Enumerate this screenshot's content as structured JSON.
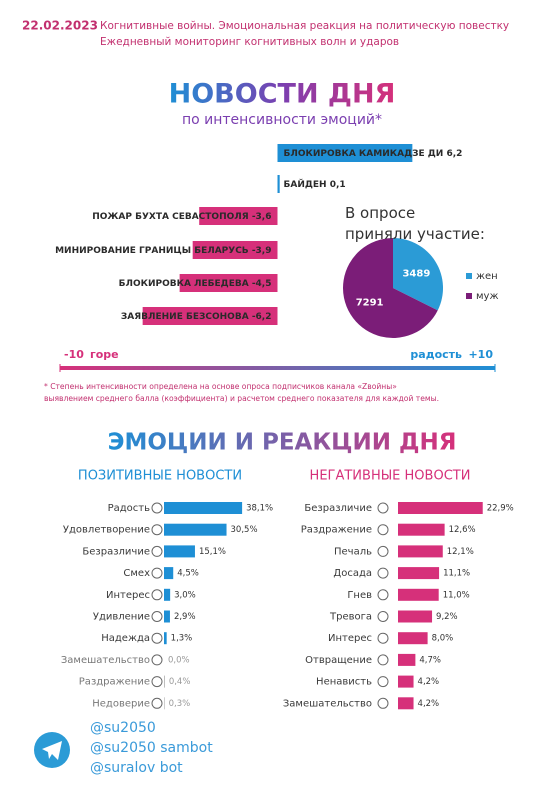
{
  "header": {
    "date": "22.02.2023",
    "lines": [
      "Когнитивные войны. Эмоциональная реакция на политическую повестку",
      "Ежедневный мониторинг когнитивных волн и ударов"
    ]
  },
  "chart_data": [
    {
      "type": "hbar",
      "title": "НОВОСТИ ДНЯ",
      "subtitle": "по интенсивности эмоций*",
      "categories": [
        "БЛОКИРОВКА КАМИКАДЗЕ ДИ",
        "БАЙДЕН",
        "ПОЖАР БУХТА СЕВАСТОПОЛЯ",
        "МИНИРОВАНИЕ ГРАНИЦЫ БЕЛАРУСЬ",
        "БЛОКИРОВКА ЛЕБЕДЕВА",
        "ЗАЯВЛЕНИЕ БЕЗСОНОВА"
      ],
      "values": [
        6.2,
        0.1,
        -3.6,
        -3.9,
        -4.5,
        -6.2
      ],
      "value_labels": [
        "6,2",
        "0,1",
        "-3,6",
        "-3,9",
        "-4,5",
        "-6,2"
      ],
      "positive_color": "#1e8fd5",
      "negative_color": "#d6307a",
      "xlim": [
        -10,
        10
      ],
      "xticks": [
        -10,
        {
          "value": 10,
          "label": "+10"
        }
      ],
      "xlabels": [
        "горе",
        "радость"
      ],
      "footnote": [
        "* Степень интенсивности определена на основе опроса подписчиков канала «Zвойны»",
        "выявлением среднего балла (коэффициента) и расчетом среднего показателя для каждой темы."
      ]
    },
    {
      "type": "pie",
      "title": "В опросе приняли участие:",
      "categories": [
        "жен",
        "муж"
      ],
      "values": [
        3489,
        7291
      ],
      "colors": [
        "#2b9bd6",
        "#7b1d78"
      ]
    },
    {
      "type": "bar",
      "title": "ПОЗИТИВНЫЕ НОВОСТИ",
      "title_color": "#1e8fd5",
      "categories": [
        "Радость",
        "Удовлетворение",
        "Безразличие",
        "Смех",
        "Интерес",
        "Удивление",
        "Надежда",
        "Замешательство",
        "Раздражение",
        "Недоверие"
      ],
      "values": [
        38.1,
        30.5,
        15.1,
        4.5,
        3.0,
        2.9,
        1.3,
        0.0,
        0.4,
        0.3
      ],
      "value_labels": [
        "38,1%",
        "30,5%",
        "15,1%",
        "4,5%",
        "3,0%",
        "2,9%",
        "1,3%",
        "0,0%",
        "0,4%",
        "0,3%"
      ],
      "colors": [
        "#1e8fd5",
        "#1e8fd5",
        "#1e8fd5",
        "#1e8fd5",
        "#1e8fd5",
        "#1e8fd5",
        "#1e8fd5",
        "#b0b0b0",
        "#b0b0b0",
        "#b0b0b0"
      ]
    },
    {
      "type": "bar",
      "title": "НЕГАТИВНЫЕ НОВОСТИ",
      "title_color": "#d6307a",
      "categories": [
        "Безразличие",
        "Раздражение",
        "Печаль",
        "Досада",
        "Гнев",
        "Тревога",
        "Интерес",
        "Отвращение",
        "Ненависть",
        "Замешательство"
      ],
      "values": [
        22.9,
        12.6,
        12.1,
        11.1,
        11.0,
        9.2,
        8.0,
        4.7,
        4.2,
        4.2
      ],
      "value_labels": [
        "22,9%",
        "12,6%",
        "12,1%",
        "11,1%",
        "11,0%",
        "9,2%",
        "8,0%",
        "4,7%",
        "4,2%",
        "4,2%"
      ],
      "colors": [
        "#d6307a",
        "#d6307a",
        "#d6307a",
        "#d6307a",
        "#d6307a",
        "#d6307a",
        "#d6307a",
        "#d6307a",
        "#d6307a",
        "#d6307a"
      ]
    }
  ],
  "section_title": "ЭМОЦИИ И РЕАКЦИИ ДНЯ",
  "footer": {
    "handles": [
      "@su2050",
      "@su2050 sambot",
      "@suralov bot"
    ]
  }
}
